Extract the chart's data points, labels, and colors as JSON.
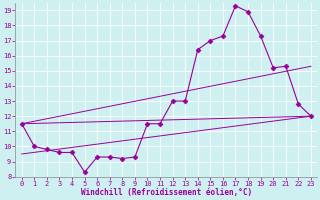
{
  "xlabel": "Windchill (Refroidissement éolien,°C)",
  "bg_color": "#cff0f0",
  "line_color": "#990099",
  "xlim": [
    -0.5,
    23.5
  ],
  "ylim": [
    8,
    19.5
  ],
  "yticks": [
    8,
    9,
    10,
    11,
    12,
    13,
    14,
    15,
    16,
    17,
    18,
    19
  ],
  "xticks": [
    0,
    1,
    2,
    3,
    4,
    5,
    6,
    7,
    8,
    9,
    10,
    11,
    12,
    13,
    14,
    15,
    16,
    17,
    18,
    19,
    20,
    21,
    22,
    23
  ],
  "main_x": [
    0,
    1,
    2,
    3,
    4,
    5,
    6,
    7,
    8,
    9,
    10,
    11,
    12,
    13,
    14,
    15,
    16,
    17,
    18,
    19,
    20,
    21,
    22,
    23
  ],
  "main_y": [
    11.5,
    10.0,
    9.8,
    9.6,
    9.6,
    8.3,
    9.3,
    9.3,
    9.2,
    9.3,
    11.5,
    11.5,
    13.0,
    13.0,
    16.4,
    17.0,
    17.3,
    19.3,
    18.9,
    17.3,
    15.2,
    15.3,
    12.8,
    12.0
  ],
  "line2_x": [
    0,
    23
  ],
  "line2_y": [
    11.5,
    12.0
  ],
  "line3_x": [
    0,
    23
  ],
  "line3_y": [
    11.5,
    15.3
  ],
  "line4_x": [
    0,
    23
  ],
  "line4_y": [
    9.5,
    12.0
  ]
}
